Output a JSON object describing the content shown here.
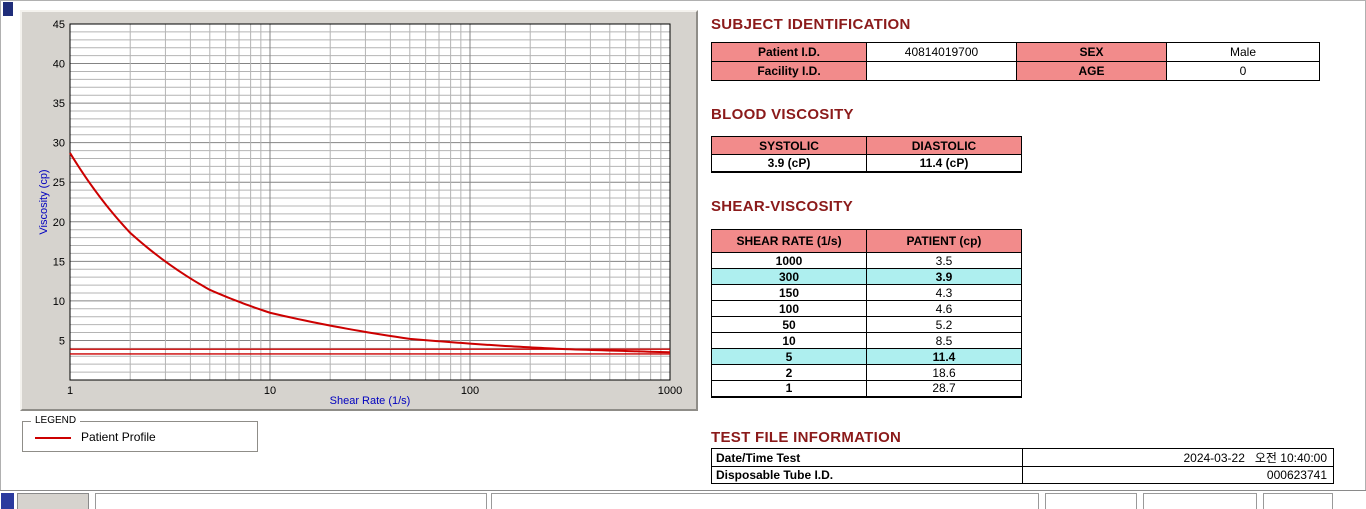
{
  "colors": {
    "heading": "#8b1a1a",
    "table_header_bg": "#f28b8b",
    "highlight_bg": "#aeefef",
    "profile_line": "#cc0000",
    "axis_title": "#0000bf",
    "chart_panel_bg": "#d6d3ce"
  },
  "chart_data": {
    "type": "line",
    "xlabel": "Shear Rate (1/s)",
    "ylabel": "Viscosity (cp)",
    "xscale": "log",
    "xlim": [
      1,
      1000
    ],
    "ylim": [
      0,
      45
    ],
    "y_ticks": [
      5,
      10,
      15,
      20,
      25,
      30,
      35,
      40,
      45
    ],
    "x_ticks": [
      1,
      10,
      100,
      1000
    ],
    "grid": true,
    "legend_position": "outside-bottom-left",
    "series": [
      {
        "name": "Patient Profile",
        "color": "#cc0000",
        "x": [
          1,
          2,
          5,
          10,
          50,
          100,
          150,
          300,
          1000
        ],
        "y": [
          28.7,
          18.6,
          11.4,
          8.5,
          5.2,
          4.6,
          4.3,
          3.9,
          3.5
        ]
      }
    ],
    "reference_lines": [
      {
        "y": 3.9,
        "color": "#cc0000"
      },
      {
        "y": 3.3,
        "color": "#cc0000"
      }
    ]
  },
  "legend": {
    "title": "LEGEND",
    "items": [
      {
        "label": "Patient Profile",
        "color": "#cc0000"
      }
    ]
  },
  "subject_identification": {
    "title": "SUBJECT IDENTIFICATION",
    "rows": [
      {
        "label1": "Patient I.D.",
        "value1": "40814019700",
        "label2": "SEX",
        "value2": "Male"
      },
      {
        "label1": "Facility I.D.",
        "value1": "",
        "label2": "AGE",
        "value2": "0"
      }
    ]
  },
  "blood_viscosity": {
    "title": "BLOOD VISCOSITY",
    "headers": [
      "SYSTOLIC",
      "DIASTOLIC"
    ],
    "values": [
      "3.9 (cP)",
      "11.4 (cP)"
    ]
  },
  "shear_viscosity": {
    "title": "SHEAR-VISCOSITY",
    "headers": [
      "SHEAR RATE (1/s)",
      "PATIENT (cp)"
    ],
    "rows": [
      {
        "rate": "1000",
        "value": "3.5",
        "highlight": false
      },
      {
        "rate": "300",
        "value": "3.9",
        "highlight": true
      },
      {
        "rate": "150",
        "value": "4.3",
        "highlight": false
      },
      {
        "rate": "100",
        "value": "4.6",
        "highlight": false
      },
      {
        "rate": "50",
        "value": "5.2",
        "highlight": false
      },
      {
        "rate": "10",
        "value": "8.5",
        "highlight": false
      },
      {
        "rate": "5",
        "value": "11.4",
        "highlight": true
      },
      {
        "rate": "2",
        "value": "18.6",
        "highlight": false
      },
      {
        "rate": "1",
        "value": "28.7",
        "highlight": false
      }
    ]
  },
  "test_file_information": {
    "title": "TEST FILE INFORMATION",
    "rows": [
      {
        "label": "Date/Time Test",
        "value": "2024-03-22   오전 10:40:00"
      },
      {
        "label": "Disposable Tube I.D.",
        "value": "000623741"
      }
    ]
  }
}
